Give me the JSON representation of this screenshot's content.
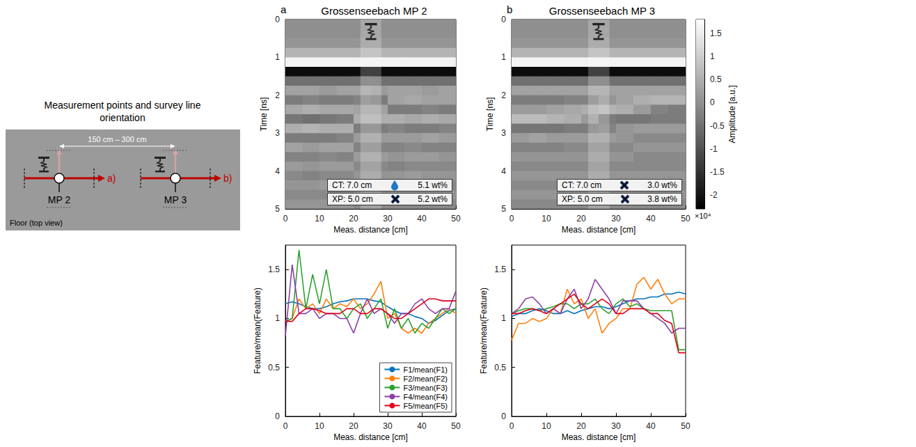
{
  "schematic": {
    "title": "Measurement points and survey line orientation",
    "spacing": "150 cm – 300 cm",
    "points": [
      {
        "label": "MP 2",
        "line": "a)"
      },
      {
        "label": "MP 3",
        "line": "b)"
      }
    ],
    "floor": "Floor (top view)"
  },
  "chart_data": [
    {
      "type": "heatmap",
      "panel": "a",
      "title": "Grossenseebach MP 2",
      "x_label": "Meas. distance [cm]",
      "y_label": "Time [ns]",
      "xlim": [
        0,
        50
      ],
      "xticks": [
        0,
        10,
        20,
        30,
        40,
        50
      ],
      "ylim": [
        0,
        5
      ],
      "yticks": [
        0,
        1,
        2,
        3,
        4,
        5
      ],
      "x_bins": [
        0,
        5,
        10,
        15,
        20,
        25,
        30,
        35,
        40,
        45,
        50
      ],
      "y_bins": [
        0,
        0.25,
        0.5,
        0.75,
        1,
        1.25,
        1.5,
        1.75,
        2,
        2.25,
        2.5,
        2.75,
        3,
        3.25,
        3.5,
        3.75,
        4,
        4.25,
        4.5,
        4.75,
        5
      ],
      "values": [
        [
          0,
          0,
          0,
          0,
          0,
          0,
          0,
          0,
          0,
          0
        ],
        [
          0,
          0,
          0,
          0,
          0,
          0,
          0,
          0,
          0,
          0
        ],
        [
          0.1,
          0.1,
          0.1,
          0.1,
          0.1,
          0.1,
          0.1,
          0.1,
          0.1,
          0.1
        ],
        [
          0.6,
          0.6,
          0.6,
          0.6,
          0.6,
          0.6,
          0.6,
          0.6,
          0.6,
          0.6
        ],
        [
          1.6,
          1.6,
          1.6,
          1.6,
          1.6,
          1.6,
          1.6,
          1.6,
          1.6,
          1.6
        ],
        [
          -2.1,
          -2.1,
          -2.1,
          -2.1,
          -2.1,
          -2.1,
          -2.1,
          -2.1,
          -2.1,
          -2.1
        ],
        [
          -0.5,
          -0.5,
          -0.5,
          -0.5,
          -0.5,
          -0.5,
          -0.5,
          -0.5,
          -0.5,
          -0.5
        ],
        [
          0.3,
          0.3,
          0.2,
          0.3,
          0.3,
          0.2,
          0.3,
          0.3,
          0.2,
          0.3
        ],
        [
          -0.3,
          -0.2,
          -0.3,
          -0.3,
          -0.2,
          -0.3,
          0.3,
          0.4,
          0.3,
          0.3
        ],
        [
          0.4,
          0.5,
          0.4,
          0.4,
          0.3,
          0.3,
          -0.3,
          -0.3,
          -0.2,
          -0.3
        ],
        [
          -0.4,
          -0.5,
          -0.4,
          -0.3,
          0.5,
          0.5,
          0.5,
          0.4,
          0.5,
          0.4
        ],
        [
          0.5,
          0.6,
          0.5,
          0.5,
          -0.3,
          -0.3,
          -0.2,
          -0.3,
          -0.3,
          -0.2
        ],
        [
          -0.3,
          -0.3,
          -0.3,
          -0.2,
          0.2,
          0.2,
          0.2,
          0.2,
          0.3,
          0.2
        ],
        [
          0.3,
          0.2,
          0.3,
          0.3,
          -0.2,
          -0.2,
          -0.2,
          -0.1,
          -0.2,
          -0.2
        ],
        [
          -0.2,
          -0.2,
          -0.1,
          -0.2,
          0.2,
          0.2,
          0.1,
          0.2,
          0.2,
          0.1
        ],
        [
          0.2,
          0.1,
          0.2,
          0.2,
          -0.1,
          -0.1,
          -0.2,
          -0.1,
          -0.1,
          -0.1
        ],
        [
          -0.1,
          -0.2,
          -0.1,
          -0.1,
          0.1,
          0.1,
          0.1,
          0.2,
          0.1,
          0.1
        ],
        [
          0.1,
          0.1,
          0.2,
          0.1,
          -0.1,
          -0.1,
          -0.1,
          -0.1,
          -0.2,
          -0.1
        ],
        [
          -0.1,
          -0.1,
          -0.1,
          -0.1,
          0.1,
          0.1,
          0.1,
          0.1,
          0.1,
          0.1
        ],
        [
          0.1,
          0.1,
          0.1,
          0.1,
          -0.1,
          -0.1,
          -0.1,
          -0.1,
          -0.1,
          -0.1
        ]
      ],
      "marked_range": [
        22,
        28
      ],
      "annotations": [
        {
          "text": "CT: 7.0 cm",
          "marker": "drop",
          "note": "5.1 wt%"
        },
        {
          "text": "XP: 5.0 cm",
          "marker": "cross",
          "note": "5.2 wt%"
        }
      ]
    },
    {
      "type": "heatmap",
      "panel": "b",
      "title": "Grossenseebach MP 3",
      "x_label": "Meas. distance [cm]",
      "y_label": "Time [ns]",
      "xlim": [
        0,
        50
      ],
      "xticks": [
        0,
        10,
        20,
        30,
        40,
        50
      ],
      "ylim": [
        0,
        5
      ],
      "yticks": [
        0,
        1,
        2,
        3,
        4,
        5
      ],
      "x_bins": [
        0,
        5,
        10,
        15,
        20,
        25,
        30,
        35,
        40,
        45,
        50
      ],
      "y_bins": [
        0,
        0.25,
        0.5,
        0.75,
        1,
        1.25,
        1.5,
        1.75,
        2,
        2.25,
        2.5,
        2.75,
        3,
        3.25,
        3.5,
        3.75,
        4,
        4.25,
        4.5,
        4.75,
        5
      ],
      "values": [
        [
          0,
          0,
          0,
          0,
          0,
          0,
          0,
          0,
          0,
          0
        ],
        [
          0,
          0,
          0,
          0,
          0,
          0,
          0,
          0,
          0,
          0
        ],
        [
          0.1,
          0.1,
          0.1,
          0.1,
          0.1,
          0.1,
          0.1,
          0.1,
          0.1,
          0.1
        ],
        [
          0.6,
          0.6,
          0.6,
          0.6,
          0.6,
          0.6,
          0.6,
          0.6,
          0.6,
          0.6
        ],
        [
          1.6,
          1.6,
          1.6,
          1.6,
          1.6,
          1.6,
          1.6,
          1.6,
          1.6,
          1.6
        ],
        [
          -2.1,
          -2.1,
          -2.1,
          -2.1,
          -2.1,
          -2.1,
          -2.1,
          -2.1,
          -2.1,
          -2.1
        ],
        [
          -0.5,
          -0.5,
          -0.5,
          -0.5,
          -0.5,
          -0.5,
          -0.5,
          -0.5,
          -0.5,
          -0.5
        ],
        [
          0.3,
          0.3,
          0.3,
          0.3,
          0.3,
          0.3,
          0.3,
          0.3,
          0.3,
          0.3
        ],
        [
          -0.3,
          -0.3,
          -0.3,
          -0.2,
          -0.2,
          0.1,
          0.3,
          0.5,
          0.6,
          0.6
        ],
        [
          0.2,
          0.2,
          0.3,
          0.4,
          0.5,
          0.6,
          0.5,
          0.2,
          -0.2,
          -0.3
        ],
        [
          0.7,
          0.7,
          0.6,
          0.5,
          0.2,
          -0.3,
          -0.4,
          -0.4,
          -0.3,
          -0.3
        ],
        [
          -0.4,
          -0.4,
          -0.4,
          -0.3,
          -0.3,
          -0.2,
          0.1,
          0.2,
          0.2,
          0.2
        ],
        [
          0.2,
          0.3,
          0.2,
          0.2,
          0.2,
          0.2,
          0.1,
          -0.1,
          -0.1,
          -0.1
        ],
        [
          -0.2,
          -0.2,
          -0.2,
          -0.1,
          -0.1,
          -0.1,
          -0.1,
          0.1,
          0.1,
          0.1
        ],
        [
          0.1,
          0.1,
          0.1,
          0.1,
          0.1,
          0.1,
          0.1,
          -0.1,
          -0.1,
          -0.1
        ],
        [
          -0.1,
          -0.1,
          -0.1,
          -0.1,
          -0.1,
          -0.1,
          -0.1,
          -0.1,
          -0.1,
          -0.1
        ],
        [
          0.1,
          0.1,
          0.1,
          0.1,
          0.1,
          0.1,
          0.1,
          0.1,
          0.1,
          0.1
        ],
        [
          -0.1,
          -0.1,
          -0.1,
          -0.1,
          -0.1,
          -0.1,
          -0.1,
          -0.1,
          -0.1,
          -0.1
        ],
        [
          0.1,
          0.1,
          0.1,
          0.1,
          0.1,
          0.1,
          0.1,
          0.1,
          0.1,
          0.1
        ],
        [
          -0.1,
          -0.1,
          -0.1,
          -0.1,
          -0.1,
          -0.1,
          -0.1,
          -0.1,
          -0.1,
          -0.1
        ]
      ],
      "marked_range": [
        22,
        28
      ],
      "annotations": [
        {
          "text": "CT: 7.0 cm",
          "marker": "cross",
          "note": "3.0 wt%"
        },
        {
          "text": "XP: 5.0 cm",
          "marker": "cross",
          "note": "3.8 wt%"
        }
      ],
      "colorbar": {
        "label": "Amplitude [a.u.]",
        "multiplier": "×10⁴",
        "range": [
          -2.3,
          1.8
        ],
        "ticks": [
          -2,
          -1.5,
          -1,
          -0.5,
          0,
          0.5,
          1,
          1.5
        ]
      }
    },
    {
      "type": "line",
      "x_label": "Meas. distance [cm]",
      "y_label": "Feature/mean(Feature)",
      "xlim": [
        0,
        50
      ],
      "xticks": [
        0,
        10,
        20,
        30,
        40,
        50
      ],
      "ylim": [
        0,
        1.75
      ],
      "yticks": [
        0,
        0.5,
        1,
        1.5
      ],
      "legend": "lower right",
      "x": [
        0,
        2,
        4,
        6,
        8,
        10,
        12,
        14,
        16,
        18,
        20,
        22,
        24,
        26,
        28,
        30,
        32,
        34,
        36,
        38,
        40,
        42,
        44,
        46,
        48,
        50
      ],
      "series": [
        {
          "name": "F1/mean(F1)",
          "color": "#0072bd",
          "values": [
            1.15,
            1.17,
            1.15,
            1.12,
            1.1,
            1.1,
            1.12,
            1.15,
            1.17,
            1.18,
            1.2,
            1.2,
            1.2,
            1.18,
            1.17,
            1.12,
            1.08,
            1.05,
            1.05,
            1.02,
            1.0,
            0.95,
            0.98,
            1.03,
            1.08,
            1.1
          ]
        },
        {
          "name": "F2/mean(F2)",
          "color": "#ff7f0e",
          "values": [
            0.97,
            1.0,
            1.2,
            1.1,
            1.15,
            1.05,
            1.2,
            1.1,
            1.15,
            1.12,
            1.2,
            1.1,
            1.15,
            1.25,
            1.38,
            1.0,
            1.05,
            0.9,
            0.85,
            0.9,
            0.85,
            0.95,
            1.0,
            1.05,
            1.1,
            1.05
          ]
        },
        {
          "name": "F3/mean(F3)",
          "color": "#2ca02c",
          "values": [
            0.97,
            1.0,
            1.7,
            1.1,
            1.45,
            1.15,
            1.5,
            1.1,
            1.1,
            1.0,
            1.1,
            1.15,
            1.0,
            1.1,
            1.2,
            0.9,
            1.1,
            0.9,
            1.0,
            0.85,
            0.95,
            0.9,
            1.0,
            1.1,
            1.05,
            1.1
          ]
        },
        {
          "name": "F4/mean(F4)",
          "color": "#8c3fa6",
          "values": [
            0.82,
            1.55,
            1.05,
            1.05,
            1.1,
            1.0,
            1.05,
            1.05,
            1.0,
            1.0,
            0.85,
            1.05,
            1.2,
            1.05,
            1.1,
            1.05,
            0.95,
            1.05,
            1.05,
            1.15,
            1.2,
            1.1,
            1.05,
            1.1,
            1.1,
            1.28
          ]
        },
        {
          "name": "F5/mean(F5)",
          "color": "#e0001b",
          "values": [
            0.97,
            0.97,
            1.05,
            1.1,
            1.1,
            1.08,
            1.05,
            1.05,
            1.05,
            1.1,
            1.1,
            1.05,
            1.05,
            1.1,
            1.1,
            1.05,
            1.0,
            1.0,
            1.05,
            1.1,
            1.15,
            1.2,
            1.2,
            1.18,
            1.18,
            1.18
          ]
        }
      ]
    },
    {
      "type": "line",
      "x_label": "Meas. distance [cm]",
      "y_label": "Feature/mean(Feature)",
      "xlim": [
        0,
        50
      ],
      "xticks": [
        0,
        10,
        20,
        30,
        40,
        50
      ],
      "ylim": [
        0,
        1.75
      ],
      "yticks": [
        0,
        0.5,
        1,
        1.5
      ],
      "x": [
        0,
        2,
        4,
        6,
        8,
        10,
        12,
        14,
        16,
        18,
        20,
        22,
        24,
        26,
        28,
        30,
        32,
        34,
        36,
        38,
        40,
        42,
        44,
        46,
        48,
        50
      ],
      "series": [
        {
          "name": "F1/mean(F1)",
          "color": "#0072bd",
          "values": [
            1.02,
            1.05,
            1.05,
            1.08,
            1.1,
            1.08,
            1.05,
            1.05,
            1.08,
            1.05,
            1.08,
            1.1,
            1.12,
            1.12,
            1.1,
            1.12,
            1.15,
            1.18,
            1.2,
            1.2,
            1.22,
            1.22,
            1.25,
            1.25,
            1.27,
            1.25
          ]
        },
        {
          "name": "F2/mean(F2)",
          "color": "#ff7f0e",
          "values": [
            0.78,
            0.95,
            0.95,
            1.0,
            0.97,
            1.0,
            1.1,
            1.05,
            1.3,
            1.15,
            1.2,
            1.0,
            1.1,
            0.85,
            0.95,
            1.0,
            1.1,
            1.1,
            1.35,
            1.42,
            1.3,
            1.4,
            1.25,
            1.15,
            1.2,
            1.2
          ]
        },
        {
          "name": "F3/mean(F3)",
          "color": "#2ca02c",
          "values": [
            1.05,
            1.08,
            1.1,
            1.1,
            1.08,
            1.1,
            1.12,
            1.15,
            1.15,
            1.1,
            1.15,
            1.15,
            1.2,
            1.1,
            1.05,
            1.15,
            1.2,
            1.12,
            1.15,
            1.1,
            1.08,
            1.08,
            1.08,
            1.08,
            0.68,
            0.68
          ]
        },
        {
          "name": "F4/mean(F4)",
          "color": "#8c3fa6",
          "values": [
            1.05,
            1.1,
            1.2,
            1.22,
            1.15,
            1.05,
            1.1,
            1.05,
            1.2,
            1.3,
            1.1,
            1.2,
            1.4,
            1.3,
            1.2,
            1.05,
            1.18,
            1.18,
            1.18,
            1.1,
            1.05,
            1.0,
            0.95,
            0.85,
            0.9,
            0.9
          ]
        },
        {
          "name": "F5/mean(F5)",
          "color": "#e0001b",
          "values": [
            1.05,
            1.05,
            1.08,
            1.1,
            1.08,
            1.05,
            1.1,
            1.15,
            1.2,
            1.25,
            1.15,
            1.1,
            1.15,
            1.2,
            1.15,
            1.05,
            1.05,
            1.1,
            1.1,
            1.1,
            1.05,
            1.05,
            0.98,
            0.95,
            0.65,
            0.65
          ]
        }
      ]
    }
  ]
}
